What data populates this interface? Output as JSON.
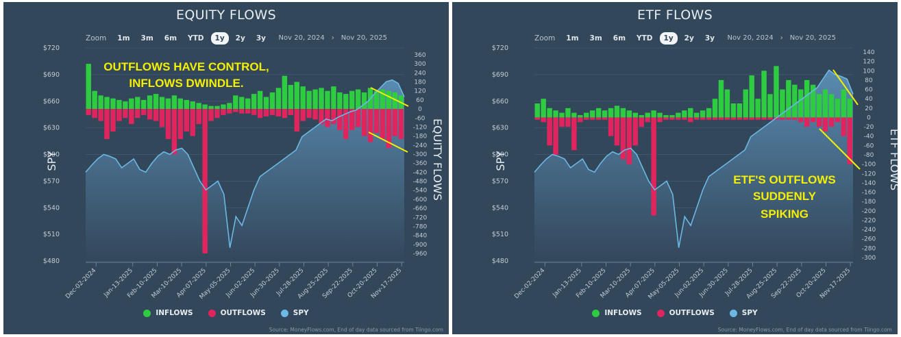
{
  "colors": {
    "panel_bg": "#33475b",
    "inflows": "#2ecc40",
    "outflows": "#e0245e",
    "spy_line": "#6cb8e6",
    "spy_fill": "#5b8fb5",
    "annotation": "#f5f000",
    "grid": "#3f566b",
    "tick": "#c3ccd5"
  },
  "zoom_label": "Zoom",
  "zoom_buttons": [
    "1m",
    "3m",
    "6m",
    "YTD",
    "1y",
    "2y",
    "3y"
  ],
  "zoom_active": "1y",
  "range_from": "Nov 20, 2024",
  "range_arrow": "›",
  "range_to": "Nov 20, 2025",
  "legend": [
    {
      "label": "INFLOWS",
      "color": "#2ecc40"
    },
    {
      "label": "OUTFLOWS",
      "color": "#e0245e"
    },
    {
      "label": "SPY",
      "color": "#6cb8e6"
    }
  ],
  "source": "Source: MoneyFlows.com, End of day data sourced from Tiingo.com",
  "chart_data": [
    {
      "type": "bar+area",
      "title": "EQUITY FLOWS",
      "ylabel_left": "SPY",
      "ylabel_right": "EQUITY FLOWS",
      "x_ticks": [
        "Dec-02-2024",
        "Jan-13-2025",
        "Feb-10-2025",
        "Mar-10-2025",
        "Apr-07-2025",
        "May-05-2025",
        "Jun-02-2025",
        "Jun-30-2025",
        "Jul-28-2025",
        "Aug-25-2025",
        "Sep-22-2025",
        "Oct-20-2025",
        "Nov-17-2025"
      ],
      "ylim_left": [
        480,
        720
      ],
      "yticks_left": [
        "$720",
        "$690",
        "$660",
        "$630",
        "$600",
        "$570",
        "$540",
        "$510",
        "$480"
      ],
      "ylim_right": [
        -960,
        360
      ],
      "yticks_right": [
        "360",
        "300",
        "240",
        "180",
        "120",
        "60",
        "0",
        "-60",
        "-120",
        "-180",
        "-240",
        "-300",
        "-360",
        "-420",
        "-480",
        "-540",
        "-600",
        "-660",
        "-720",
        "-780",
        "-840",
        "-900",
        "-960"
      ],
      "grid": true,
      "legend_position": "bottom",
      "series": [
        {
          "name": "SPY",
          "values": [
            580,
            588,
            595,
            600,
            598,
            595,
            585,
            590,
            595,
            583,
            580,
            590,
            598,
            603,
            600,
            605,
            607,
            600,
            585,
            570,
            560,
            565,
            570,
            555,
            495,
            530,
            520,
            540,
            560,
            575,
            580,
            585,
            590,
            595,
            600,
            605,
            620,
            625,
            630,
            635,
            640,
            638,
            642,
            645,
            648,
            650,
            655,
            660,
            668,
            675,
            682,
            684,
            680,
            665
          ]
        },
        {
          "name": "INFLOWS",
          "values": [
            300,
            120,
            90,
            80,
            70,
            60,
            50,
            70,
            80,
            60,
            90,
            100,
            80,
            70,
            90,
            70,
            60,
            50,
            40,
            30,
            20,
            20,
            30,
            40,
            90,
            80,
            70,
            100,
            120,
            80,
            110,
            140,
            220,
            160,
            180,
            150,
            120,
            130,
            140,
            120,
            150,
            110,
            100,
            120,
            130,
            110,
            140,
            120,
            130,
            120,
            110,
            90
          ]
        },
        {
          "name": "OUTFLOWS",
          "values": [
            -40,
            -60,
            -80,
            -200,
            -150,
            -80,
            -60,
            -100,
            -60,
            -40,
            -70,
            -80,
            -120,
            -200,
            -300,
            -200,
            -150,
            -180,
            -100,
            -960,
            -80,
            -60,
            -40,
            -30,
            -20,
            -30,
            -30,
            -40,
            -60,
            -50,
            -40,
            -50,
            -60,
            -40,
            -150,
            -80,
            -60,
            -70,
            -100,
            -120,
            -100,
            -140,
            -200,
            -140,
            -120,
            -180,
            -220,
            -160,
            -200,
            -260,
            -180,
            -200
          ]
        }
      ],
      "annotations": [
        "OUTFLOWS HAVE CONTROL,",
        "INFLOWS DWINDLE."
      ]
    },
    {
      "type": "bar+area",
      "title": "ETF FLOWS",
      "ylabel_left": "SPY",
      "ylabel_right": "ETF FLOWS",
      "x_ticks": [
        "Dec-02-2024",
        "Jan-13-2025",
        "Feb-10-2025",
        "Mar-10-2025",
        "Apr-07-2025",
        "May-05-2025",
        "Jun-02-2025",
        "Jun-30-2025",
        "Jul-28-2025",
        "Aug-25-2025",
        "Sep-22-2025",
        "Oct-20-2025",
        "Nov-17-2025"
      ],
      "ylim_left": [
        480,
        720
      ],
      "yticks_left": [
        "$720",
        "$690",
        "$660",
        "$630",
        "$600",
        "$570",
        "$540",
        "$510",
        "$480"
      ],
      "ylim_right": [
        -300,
        140
      ],
      "yticks_right": [
        "140",
        "120",
        "100",
        "80",
        "60",
        "40",
        "20",
        "0",
        "-20",
        "-40",
        "-60",
        "-80",
        "-100",
        "-120",
        "-140",
        "-160",
        "-180",
        "-200",
        "-220",
        "-240",
        "-260",
        "-280",
        "-300"
      ],
      "grid": true,
      "legend_position": "bottom",
      "series": [
        {
          "name": "SPY",
          "values": [
            580,
            588,
            595,
            600,
            598,
            595,
            585,
            590,
            595,
            583,
            580,
            590,
            598,
            603,
            600,
            605,
            607,
            600,
            585,
            570,
            560,
            565,
            570,
            555,
            495,
            530,
            520,
            540,
            560,
            575,
            580,
            585,
            590,
            595,
            600,
            605,
            620,
            625,
            630,
            635,
            640,
            645,
            650,
            655,
            660,
            665,
            670,
            675,
            685,
            695,
            690,
            688,
            685,
            668
          ]
        },
        {
          "name": "INFLOWS",
          "values": [
            30,
            40,
            20,
            15,
            10,
            20,
            10,
            5,
            10,
            15,
            20,
            15,
            20,
            25,
            20,
            15,
            10,
            5,
            10,
            15,
            10,
            5,
            5,
            10,
            15,
            20,
            10,
            15,
            20,
            40,
            80,
            60,
            30,
            30,
            60,
            90,
            40,
            100,
            50,
            110,
            60,
            80,
            70,
            60,
            80,
            70,
            50,
            60,
            50,
            40,
            60,
            40
          ]
        },
        {
          "name": "OUTFLOWS",
          "values": [
            -5,
            -10,
            -60,
            -80,
            -20,
            -20,
            -70,
            -10,
            -5,
            -5,
            -5,
            -5,
            -40,
            -60,
            -90,
            -100,
            -60,
            -20,
            -10,
            -210,
            -10,
            -5,
            -5,
            -5,
            -5,
            -10,
            -5,
            -5,
            -5,
            -5,
            -5,
            -5,
            -5,
            -5,
            -5,
            -5,
            -5,
            -5,
            -5,
            -5,
            -5,
            -5,
            -5,
            -10,
            -20,
            -10,
            -20,
            -30,
            -20,
            -10,
            -40,
            -100
          ]
        }
      ],
      "annotations": [
        "ETF'S OUTFLOWS",
        "SUDDENLY",
        "SPIKING"
      ]
    }
  ]
}
